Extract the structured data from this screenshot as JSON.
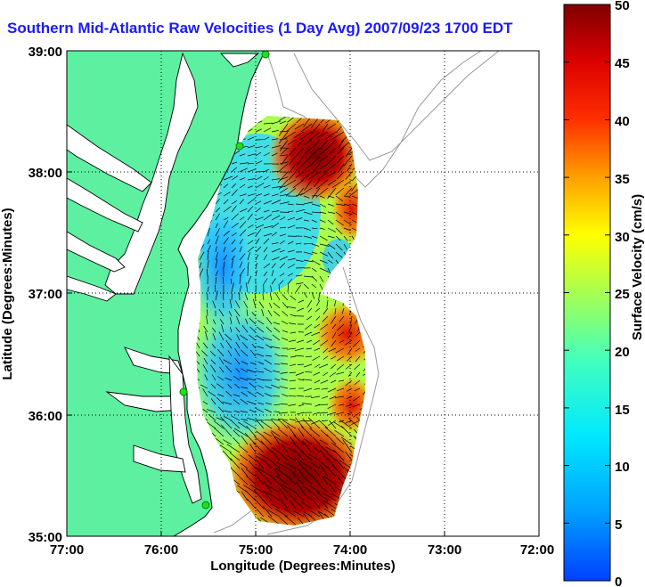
{
  "title": "Southern Mid-Atlantic Raw Velocities (1 Day Avg) 2007/09/23 1700 EDT",
  "x_axis": {
    "label": "Longitude (Degrees:Minutes)",
    "ticks": [
      "77:00",
      "76:00",
      "75:00",
      "74:00",
      "73:00",
      "72:00"
    ]
  },
  "y_axis": {
    "label": "Latitude (Degrees:Minutes)",
    "ticks": [
      "39:00",
      "38:00",
      "37:00",
      "36:00",
      "35:00"
    ]
  },
  "colorbar": {
    "label": "Surface Velocity (cm/s)",
    "ticks": [
      "50",
      "45",
      "40",
      "35",
      "30",
      "25",
      "20",
      "15",
      "10",
      "5",
      "0"
    ],
    "range": [
      0,
      50
    ]
  },
  "map": {
    "lon_range": [
      -77,
      -72
    ],
    "lat_range": [
      35,
      39
    ],
    "land_color": "#5cf0a0",
    "grid": true
  },
  "colors": {
    "title": "#1a1aff",
    "coast": "#000000",
    "bathymetry": "#9a9a9a",
    "station_marker": "#22dd22"
  }
}
